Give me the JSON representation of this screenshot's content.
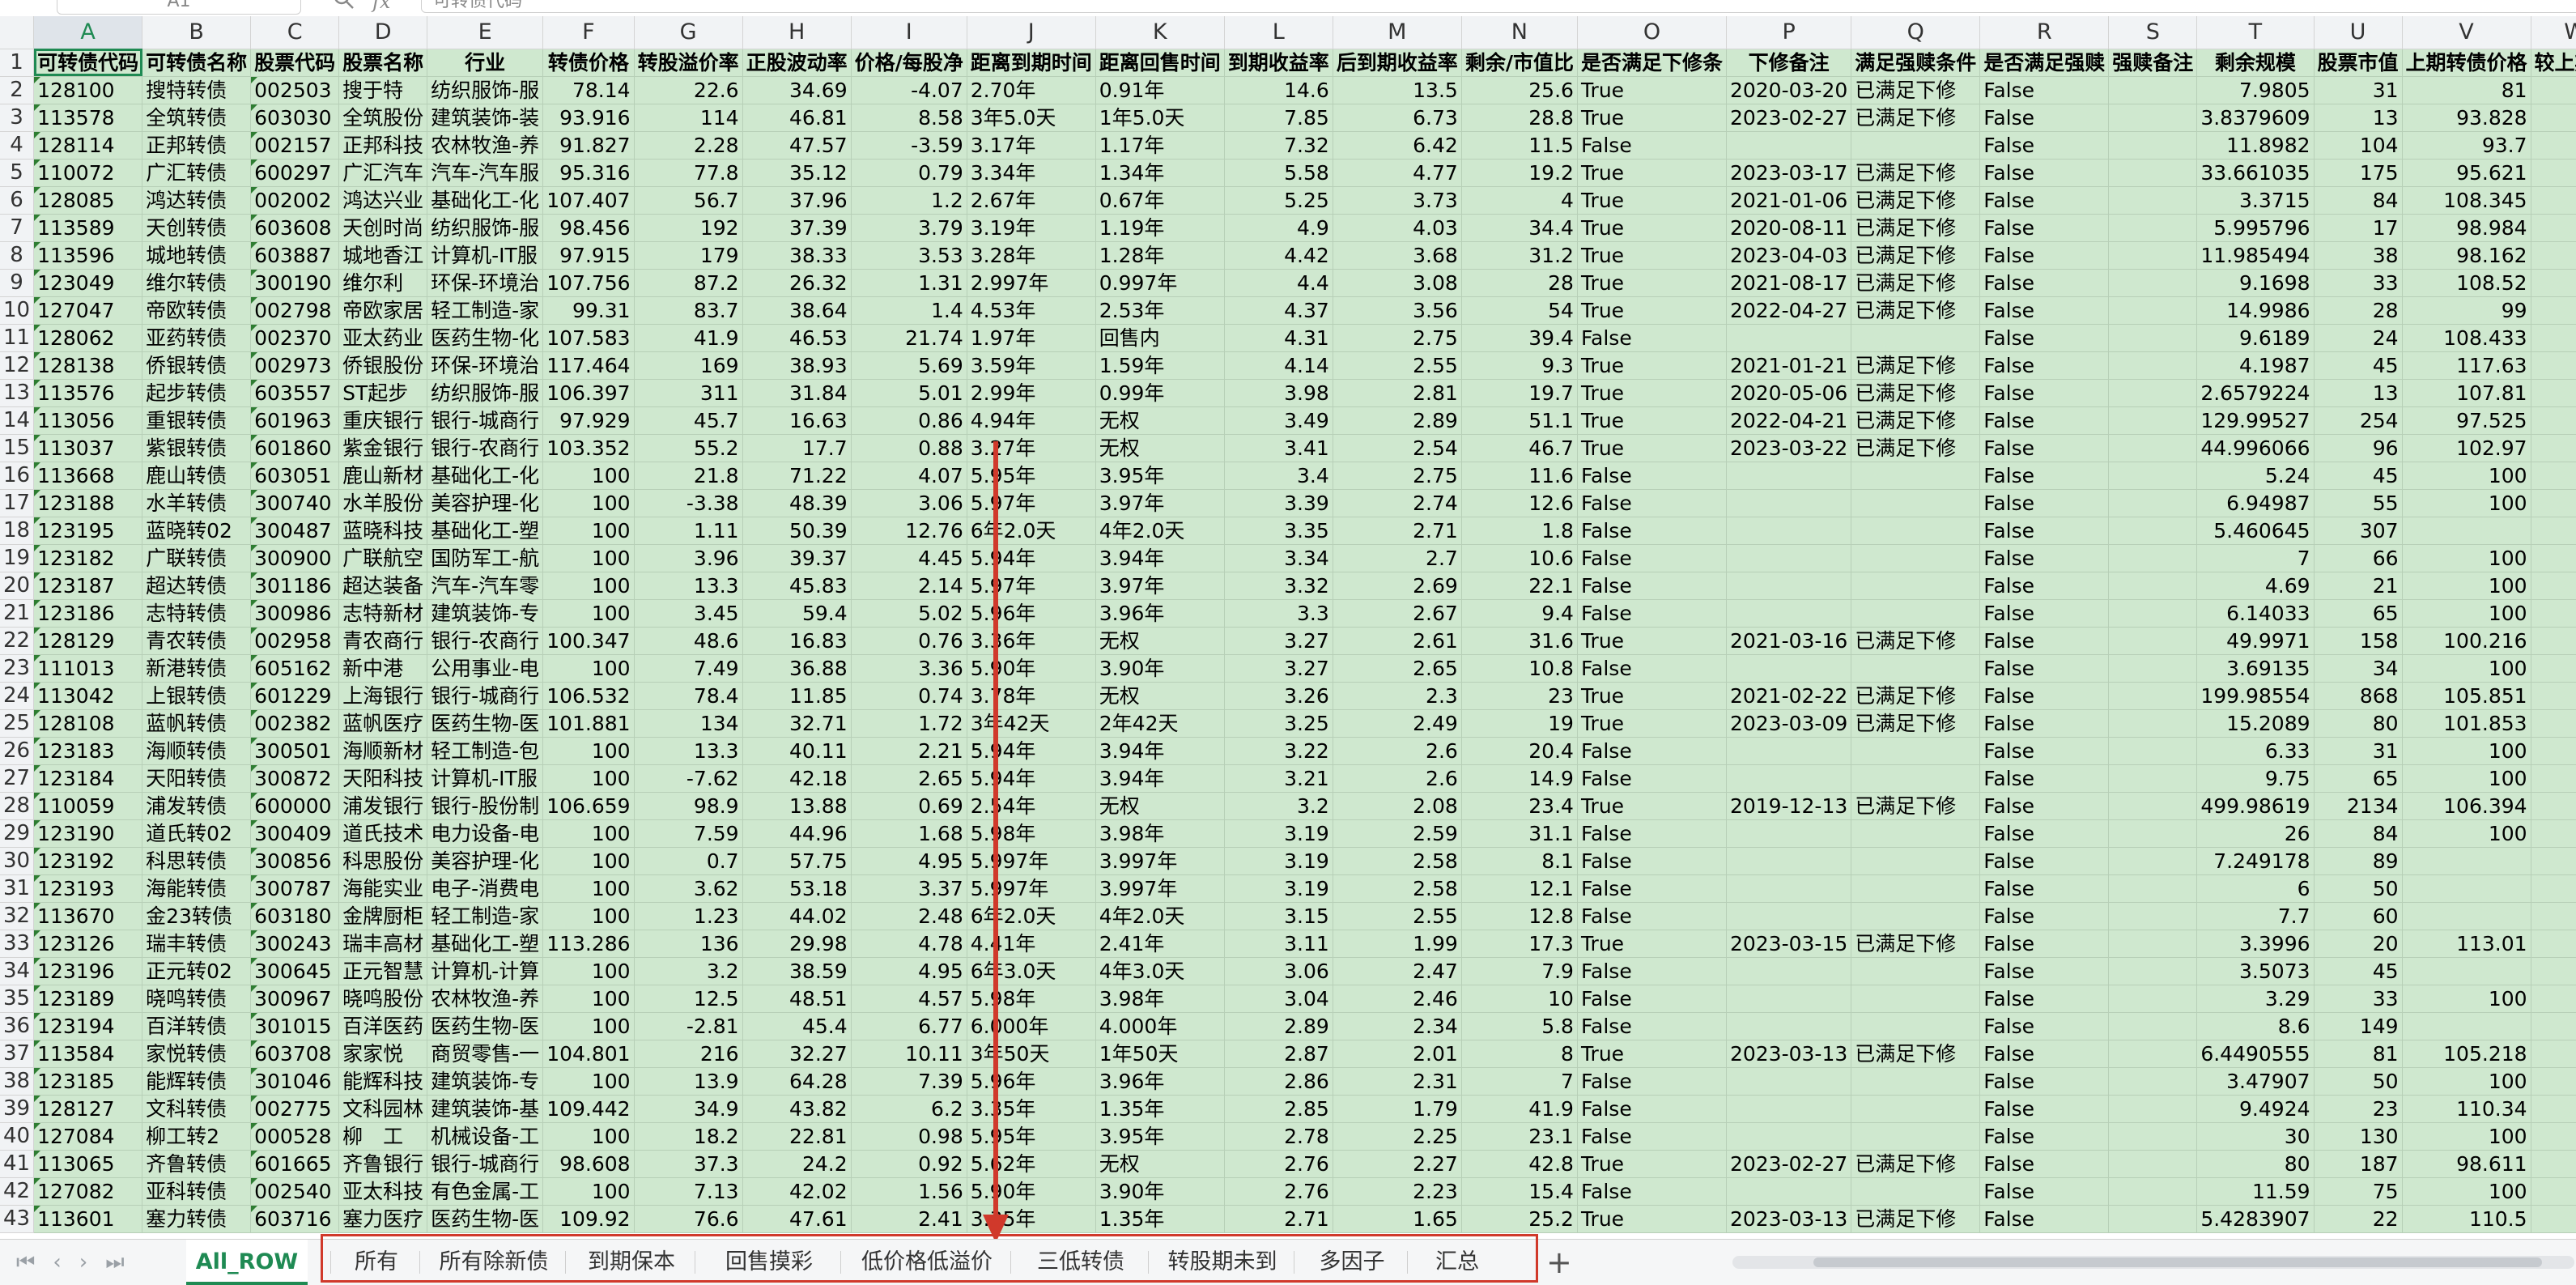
{
  "name_box": "A1",
  "formula_label": "fx",
  "formula_value": "可转债代码",
  "col_headers": [
    "A",
    "B",
    "C",
    "D",
    "E",
    "F",
    "G",
    "H",
    "I",
    "J",
    "K",
    "L",
    "M",
    "N",
    "O",
    "P",
    "Q",
    "R",
    "S",
    "T",
    "U",
    "V",
    "W"
  ],
  "header_row": [
    "可转债代码",
    "可转债名称",
    "股票代码",
    "股票名称",
    "行业",
    "转债价格",
    "转股溢价率",
    "正股波动率",
    "价格/每股净",
    "距离到期时间",
    "距离回售时间",
    "到期收益率",
    "后到期收益率",
    "剩余/市值比",
    "是否满足下修条",
    "下修备注",
    "满足强赎条件",
    "是否满足强赎",
    "强赎备注",
    "剩余规模",
    "股票市值",
    "上期转债价格",
    "较上期涨"
  ],
  "rows": [
    [
      "128100",
      "搜特转债",
      "002503",
      "搜于特",
      "纺织服饰-服",
      "78.14",
      "22.6",
      "34.69",
      "-4.07",
      "2.70年",
      "0.91年",
      "14.6",
      "13.5",
      "25.6",
      "True",
      "2020-03-20",
      "已满足下修",
      "False",
      "",
      "7.9805",
      "31",
      "81",
      ""
    ],
    [
      "113578",
      "全筑转债",
      "603030",
      "全筑股份",
      "建筑装饰-装",
      "93.916",
      "114",
      "46.81",
      "8.58",
      "3年5.0天",
      "1年5.0天",
      "7.85",
      "6.73",
      "28.8",
      "True",
      "2023-02-27",
      "已满足下修",
      "False",
      "",
      "3.8379609",
      "13",
      "93.828",
      ""
    ],
    [
      "128114",
      "正邦转债",
      "002157",
      "正邦科技",
      "农林牧渔-养",
      "91.827",
      "2.28",
      "47.57",
      "-3.59",
      "3.17年",
      "1.17年",
      "7.32",
      "6.42",
      "11.5",
      "False",
      "",
      "",
      "False",
      "",
      "11.8982",
      "104",
      "93.7",
      ""
    ],
    [
      "110072",
      "广汇转债",
      "600297",
      "广汇汽车",
      "汽车-汽车服",
      "95.316",
      "77.8",
      "35.12",
      "0.79",
      "3.34年",
      "1.34年",
      "5.58",
      "4.77",
      "19.2",
      "True",
      "2023-03-17",
      "已满足下修",
      "False",
      "",
      "33.661035",
      "175",
      "95.621",
      ""
    ],
    [
      "128085",
      "鸿达转债",
      "002002",
      "鸿达兴业",
      "基础化工-化",
      "107.407",
      "56.7",
      "37.96",
      "1.2",
      "2.67年",
      "0.67年",
      "5.25",
      "3.73",
      "4",
      "True",
      "2021-01-06",
      "已满足下修",
      "False",
      "",
      "3.3715",
      "84",
      "108.345",
      ""
    ],
    [
      "113589",
      "天创转债",
      "603608",
      "天创时尚",
      "纺织服饰-服",
      "98.456",
      "192",
      "37.39",
      "3.79",
      "3.19年",
      "1.19年",
      "4.9",
      "4.03",
      "34.4",
      "True",
      "2020-08-11",
      "已满足下修",
      "False",
      "",
      "5.995796",
      "17",
      "98.984",
      ""
    ],
    [
      "113596",
      "城地转债",
      "603887",
      "城地香江",
      "计算机-IT服",
      "97.915",
      "179",
      "38.33",
      "3.53",
      "3.28年",
      "1.28年",
      "4.42",
      "3.68",
      "31.2",
      "True",
      "2023-04-03",
      "已满足下修",
      "False",
      "",
      "11.985494",
      "38",
      "98.162",
      ""
    ],
    [
      "123049",
      "维尔转债",
      "300190",
      "维尔利",
      "环保-环境治",
      "107.756",
      "87.2",
      "26.32",
      "1.31",
      "2.997年",
      "0.997年",
      "4.4",
      "3.08",
      "28",
      "True",
      "2021-08-17",
      "已满足下修",
      "False",
      "",
      "9.1698",
      "33",
      "108.52",
      ""
    ],
    [
      "127047",
      "帝欧转债",
      "002798",
      "帝欧家居",
      "轻工制造-家",
      "99.31",
      "83.7",
      "38.64",
      "1.4",
      "4.53年",
      "2.53年",
      "4.37",
      "3.56",
      "54",
      "True",
      "2022-04-27",
      "已满足下修",
      "False",
      "",
      "14.9986",
      "28",
      "99",
      ""
    ],
    [
      "128062",
      "亚药转债",
      "002370",
      "亚太药业",
      "医药生物-化",
      "107.583",
      "41.9",
      "46.53",
      "21.74",
      "1.97年",
      "回售内",
      "4.31",
      "2.75",
      "39.4",
      "False",
      "",
      "",
      "False",
      "",
      "9.6189",
      "24",
      "108.433",
      ""
    ],
    [
      "128138",
      "侨银转债",
      "002973",
      "侨银股份",
      "环保-环境治",
      "117.464",
      "169",
      "38.93",
      "5.69",
      "3.59年",
      "1.59年",
      "4.14",
      "2.55",
      "9.3",
      "True",
      "2021-01-21",
      "已满足下修",
      "False",
      "",
      "4.1987",
      "45",
      "117.63",
      ""
    ],
    [
      "113576",
      "起步转债",
      "603557",
      "ST起步",
      "纺织服饰-服",
      "106.397",
      "311",
      "31.84",
      "5.01",
      "2.99年",
      "0.99年",
      "3.98",
      "2.81",
      "19.7",
      "True",
      "2020-05-06",
      "已满足下修",
      "False",
      "",
      "2.6579224",
      "13",
      "107.81",
      ""
    ],
    [
      "113056",
      "重银转债",
      "601963",
      "重庆银行",
      "银行-城商行",
      "97.929",
      "45.7",
      "16.63",
      "0.86",
      "4.94年",
      "无权",
      "3.49",
      "2.89",
      "51.1",
      "True",
      "2022-04-21",
      "已满足下修",
      "False",
      "",
      "129.99527",
      "254",
      "97.525",
      ""
    ],
    [
      "113037",
      "紫银转债",
      "601860",
      "紫金银行",
      "银行-农商行",
      "103.352",
      "55.2",
      "17.7",
      "0.88",
      "3.27年",
      "无权",
      "3.41",
      "2.54",
      "46.7",
      "True",
      "2023-03-22",
      "已满足下修",
      "False",
      "",
      "44.996066",
      "96",
      "102.97",
      ""
    ],
    [
      "113668",
      "鹿山转债",
      "603051",
      "鹿山新材",
      "基础化工-化",
      "100",
      "21.8",
      "71.22",
      "4.07",
      "5.95年",
      "3.95年",
      "3.4",
      "2.75",
      "11.6",
      "False",
      "",
      "",
      "False",
      "",
      "5.24",
      "45",
      "100",
      ""
    ],
    [
      "123188",
      "水羊转债",
      "300740",
      "水羊股份",
      "美容护理-化",
      "100",
      "-3.38",
      "48.39",
      "3.06",
      "5.97年",
      "3.97年",
      "3.39",
      "2.74",
      "12.6",
      "False",
      "",
      "",
      "False",
      "",
      "6.94987",
      "55",
      "100",
      ""
    ],
    [
      "123195",
      "蓝晓转02",
      "300487",
      "蓝晓科技",
      "基础化工-塑",
      "100",
      "1.11",
      "50.39",
      "12.76",
      "6年2.0天",
      "4年2.0天",
      "3.35",
      "2.71",
      "1.8",
      "False",
      "",
      "",
      "False",
      "",
      "5.460645",
      "307",
      "",
      ""
    ],
    [
      "123182",
      "广联转债",
      "300900",
      "广联航空",
      "国防军工-航",
      "100",
      "3.96",
      "39.37",
      "4.45",
      "5.94年",
      "3.94年",
      "3.34",
      "2.7",
      "10.6",
      "False",
      "",
      "",
      "False",
      "",
      "7",
      "66",
      "100",
      ""
    ],
    [
      "123187",
      "超达转债",
      "301186",
      "超达装备",
      "汽车-汽车零",
      "100",
      "13.3",
      "45.83",
      "2.14",
      "5.97年",
      "3.97年",
      "3.32",
      "2.69",
      "22.1",
      "False",
      "",
      "",
      "False",
      "",
      "4.69",
      "21",
      "100",
      ""
    ],
    [
      "123186",
      "志特转债",
      "300986",
      "志特新材",
      "建筑装饰-专",
      "100",
      "3.45",
      "59.4",
      "5.02",
      "5.96年",
      "3.96年",
      "3.3",
      "2.67",
      "9.4",
      "False",
      "",
      "",
      "False",
      "",
      "6.14033",
      "65",
      "100",
      ""
    ],
    [
      "128129",
      "青农转债",
      "002958",
      "青农商行",
      "银行-农商行",
      "100.347",
      "48.6",
      "16.83",
      "0.76",
      "3.36年",
      "无权",
      "3.27",
      "2.61",
      "31.6",
      "True",
      "2021-03-16",
      "已满足下修",
      "False",
      "",
      "49.9971",
      "158",
      "100.216",
      ""
    ],
    [
      "111013",
      "新港转债",
      "605162",
      "新中港",
      "公用事业-电",
      "100",
      "7.49",
      "36.88",
      "3.36",
      "5.90年",
      "3.90年",
      "3.27",
      "2.65",
      "10.8",
      "False",
      "",
      "",
      "False",
      "",
      "3.69135",
      "34",
      "100",
      ""
    ],
    [
      "113042",
      "上银转债",
      "601229",
      "上海银行",
      "银行-城商行",
      "106.532",
      "78.4",
      "11.85",
      "0.74",
      "3.78年",
      "无权",
      "3.26",
      "2.3",
      "23",
      "True",
      "2021-02-22",
      "已满足下修",
      "False",
      "",
      "199.98554",
      "868",
      "105.851",
      ""
    ],
    [
      "128108",
      "蓝帆转债",
      "002382",
      "蓝帆医疗",
      "医药生物-医",
      "101.881",
      "134",
      "32.71",
      "1.72",
      "3年42天",
      "2年42天",
      "3.25",
      "2.49",
      "19",
      "True",
      "2023-03-09",
      "已满足下修",
      "False",
      "",
      "15.2089",
      "80",
      "101.853",
      ""
    ],
    [
      "123183",
      "海顺转债",
      "300501",
      "海顺新材",
      "轻工制造-包",
      "100",
      "13.3",
      "40.11",
      "2.21",
      "5.94年",
      "3.94年",
      "3.22",
      "2.6",
      "20.4",
      "False",
      "",
      "",
      "False",
      "",
      "6.33",
      "31",
      "100",
      ""
    ],
    [
      "123184",
      "天阳转债",
      "300872",
      "天阳科技",
      "计算机-IT服",
      "100",
      "-7.62",
      "42.18",
      "2.65",
      "5.94年",
      "3.94年",
      "3.21",
      "2.6",
      "14.9",
      "False",
      "",
      "",
      "False",
      "",
      "9.75",
      "65",
      "100",
      ""
    ],
    [
      "110059",
      "浦发转债",
      "600000",
      "浦发银行",
      "银行-股份制",
      "106.659",
      "98.9",
      "13.88",
      "0.69",
      "2.54年",
      "无权",
      "3.2",
      "2.08",
      "23.4",
      "True",
      "2019-12-13",
      "已满足下修",
      "False",
      "",
      "499.98619",
      "2134",
      "106.394",
      ""
    ],
    [
      "123190",
      "道氏转02",
      "300409",
      "道氏技术",
      "电力设备-电",
      "100",
      "7.59",
      "44.96",
      "1.68",
      "5.98年",
      "3.98年",
      "3.19",
      "2.59",
      "31.1",
      "False",
      "",
      "",
      "False",
      "",
      "26",
      "84",
      "100",
      ""
    ],
    [
      "123192",
      "科思转债",
      "300856",
      "科思股份",
      "美容护理-化",
      "100",
      "0.7",
      "57.75",
      "4.95",
      "5.997年",
      "3.997年",
      "3.19",
      "2.58",
      "8.1",
      "False",
      "",
      "",
      "False",
      "",
      "7.249178",
      "89",
      "",
      ""
    ],
    [
      "123193",
      "海能转债",
      "300787",
      "海能实业",
      "电子-消费电",
      "100",
      "3.62",
      "53.18",
      "3.37",
      "5.997年",
      "3.997年",
      "3.19",
      "2.58",
      "12.1",
      "False",
      "",
      "",
      "False",
      "",
      "6",
      "50",
      "",
      ""
    ],
    [
      "113670",
      "金23转债",
      "603180",
      "金牌厨柜",
      "轻工制造-家",
      "100",
      "1.23",
      "44.02",
      "2.48",
      "6年2.0天",
      "4年2.0天",
      "3.15",
      "2.55",
      "12.8",
      "False",
      "",
      "",
      "False",
      "",
      "7.7",
      "60",
      "",
      ""
    ],
    [
      "123126",
      "瑞丰转债",
      "300243",
      "瑞丰高材",
      "基础化工-塑",
      "113.286",
      "136",
      "29.98",
      "4.78",
      "4.41年",
      "2.41年",
      "3.11",
      "1.99",
      "17.3",
      "True",
      "2023-03-15",
      "已满足下修",
      "False",
      "",
      "3.3996",
      "20",
      "113.01",
      ""
    ],
    [
      "123196",
      "正元转02",
      "300645",
      "正元智慧",
      "计算机-计算",
      "100",
      "3.2",
      "38.59",
      "4.95",
      "6年3.0天",
      "4年3.0天",
      "3.06",
      "2.47",
      "7.9",
      "False",
      "",
      "",
      "False",
      "",
      "3.5073",
      "45",
      "",
      ""
    ],
    [
      "123189",
      "晓鸣转债",
      "300967",
      "晓鸣股份",
      "农林牧渔-养",
      "100",
      "12.5",
      "48.51",
      "4.57",
      "5.98年",
      "3.98年",
      "3.04",
      "2.46",
      "10",
      "False",
      "",
      "",
      "False",
      "",
      "3.29",
      "33",
      "100",
      ""
    ],
    [
      "123194",
      "百洋转债",
      "301015",
      "百洋医药",
      "医药生物-医",
      "100",
      "-2.81",
      "45.4",
      "6.77",
      "6.000年",
      "4.000年",
      "2.89",
      "2.34",
      "5.8",
      "False",
      "",
      "",
      "False",
      "",
      "8.6",
      "149",
      "",
      ""
    ],
    [
      "113584",
      "家悦转债",
      "603708",
      "家家悦",
      "商贸零售-一",
      "104.801",
      "216",
      "32.27",
      "10.11",
      "3年50天",
      "1年50天",
      "2.87",
      "2.01",
      "8",
      "True",
      "2023-03-13",
      "已满足下修",
      "False",
      "",
      "6.4490555",
      "81",
      "105.218",
      ""
    ],
    [
      "123185",
      "能辉转债",
      "301046",
      "能辉科技",
      "建筑装饰-专",
      "100",
      "13.9",
      "64.28",
      "7.39",
      "5.96年",
      "3.96年",
      "2.86",
      "2.31",
      "7",
      "False",
      "",
      "",
      "False",
      "",
      "3.47907",
      "50",
      "100",
      ""
    ],
    [
      "128127",
      "文科转债",
      "002775",
      "文科园林",
      "建筑装饰-基",
      "109.442",
      "34.9",
      "43.82",
      "6.2",
      "3.35年",
      "1.35年",
      "2.85",
      "1.79",
      "41.9",
      "False",
      "",
      "",
      "False",
      "",
      "9.4924",
      "23",
      "110.34",
      ""
    ],
    [
      "127084",
      "柳工转2",
      "000528",
      "柳　工",
      "机械设备-工",
      "100",
      "18.2",
      "22.81",
      "0.98",
      "5.95年",
      "3.95年",
      "2.78",
      "2.25",
      "23.1",
      "False",
      "",
      "",
      "False",
      "",
      "30",
      "130",
      "100",
      ""
    ],
    [
      "113065",
      "齐鲁转债",
      "601665",
      "齐鲁银行",
      "银行-城商行",
      "98.608",
      "37.3",
      "24.2",
      "0.92",
      "5.62年",
      "无权",
      "2.76",
      "2.27",
      "42.8",
      "True",
      "2023-02-27",
      "已满足下修",
      "False",
      "",
      "80",
      "187",
      "98.611",
      ""
    ],
    [
      "127082",
      "亚科转债",
      "002540",
      "亚太科技",
      "有色金属-工",
      "100",
      "7.13",
      "42.02",
      "1.56",
      "5.90年",
      "3.90年",
      "2.76",
      "2.23",
      "15.4",
      "False",
      "",
      "",
      "False",
      "",
      "11.59",
      "75",
      "100",
      ""
    ],
    [
      "113601",
      "塞力转债",
      "603716",
      "塞力医疗",
      "医药生物-医",
      "109.92",
      "76.6",
      "47.61",
      "2.41",
      "3.35年",
      "1.35年",
      "2.71",
      "1.65",
      "25.2",
      "True",
      "2023-03-13",
      "已满足下修",
      "False",
      "",
      "5.4283907",
      "22",
      "110.5",
      ""
    ]
  ],
  "tabs": [
    "All_ROW",
    "所有",
    "所有除新债",
    "到期保本",
    "回售摸彩",
    "低价格低溢价",
    "三低转债",
    "转股期未到",
    "多因子",
    "汇总"
  ],
  "active_tab": "All_ROW",
  "add_tab_label": "+",
  "annotation_color": "#d0392b"
}
